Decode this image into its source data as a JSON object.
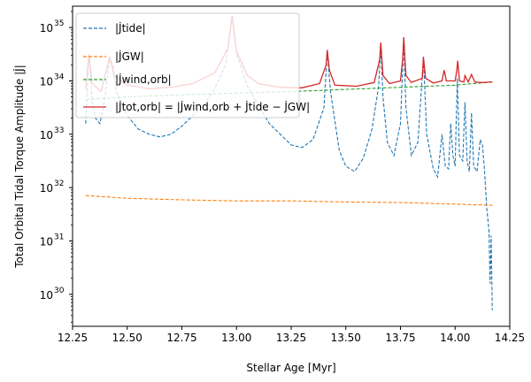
{
  "chart_data": {
    "type": "line",
    "xlabel": "Stellar Age [Myr]",
    "ylabel": "Total Orbital Tidal Torque Amplitude |J̇|",
    "xlim": [
      12.25,
      14.25
    ],
    "ylim_exp": [
      29.4,
      35.4
    ],
    "y_scale": "log",
    "x_ticks": [
      "12.25",
      "12.50",
      "12.75",
      "13.00",
      "13.25",
      "13.50",
      "13.75",
      "14.00",
      "14.25"
    ],
    "y_ticks": [
      {
        "base": "10",
        "exp": "30"
      },
      {
        "base": "10",
        "exp": "31"
      },
      {
        "base": "10",
        "exp": "32"
      },
      {
        "base": "10",
        "exp": "33"
      },
      {
        "base": "10",
        "exp": "34"
      },
      {
        "base": "10",
        "exp": "35"
      }
    ],
    "legend_position": "top-left",
    "series": [
      {
        "key": "tide",
        "color": "#1f77b4",
        "dash": true,
        "legend_tex": "|J̇tide|",
        "log10_values": [
          [
            12.31,
            33.2
          ],
          [
            12.325,
            34.5
          ],
          [
            12.34,
            33.6
          ],
          [
            12.355,
            33.3
          ],
          [
            12.375,
            33.2
          ],
          [
            12.395,
            33.6
          ],
          [
            12.42,
            34.4
          ],
          [
            12.435,
            34.3
          ],
          [
            12.45,
            33.8
          ],
          [
            12.5,
            33.35
          ],
          [
            12.55,
            33.1
          ],
          [
            12.6,
            33.0
          ],
          [
            12.65,
            32.95
          ],
          [
            12.7,
            33.0
          ],
          [
            12.75,
            33.15
          ],
          [
            12.8,
            33.35
          ],
          [
            12.85,
            33.55
          ],
          [
            12.9,
            33.85
          ],
          [
            12.95,
            34.3
          ],
          [
            12.98,
            35.2
          ],
          [
            13.0,
            34.5
          ],
          [
            13.05,
            33.9
          ],
          [
            13.1,
            33.55
          ],
          [
            13.15,
            33.2
          ],
          [
            13.2,
            33.0
          ],
          [
            13.25,
            32.8
          ],
          [
            13.3,
            32.75
          ],
          [
            13.35,
            32.9
          ],
          [
            13.4,
            33.5
          ],
          [
            13.415,
            34.55
          ],
          [
            13.43,
            33.8
          ],
          [
            13.47,
            32.7
          ],
          [
            13.5,
            32.4
          ],
          [
            13.54,
            32.3
          ],
          [
            13.58,
            32.55
          ],
          [
            13.62,
            33.1
          ],
          [
            13.65,
            33.9
          ],
          [
            13.66,
            34.65
          ],
          [
            13.67,
            33.7
          ],
          [
            13.69,
            32.85
          ],
          [
            13.72,
            32.6
          ],
          [
            13.75,
            33.2
          ],
          [
            13.765,
            34.75
          ],
          [
            13.775,
            33.5
          ],
          [
            13.8,
            32.6
          ],
          [
            13.83,
            32.85
          ],
          [
            13.855,
            34.45
          ],
          [
            13.87,
            33.0
          ],
          [
            13.9,
            32.35
          ],
          [
            13.92,
            32.2
          ],
          [
            13.94,
            33.0
          ],
          [
            13.955,
            32.4
          ],
          [
            13.97,
            32.35
          ],
          [
            13.98,
            33.2
          ],
          [
            13.99,
            32.6
          ],
          [
            14.0,
            32.4
          ],
          [
            14.01,
            34.05
          ],
          [
            14.02,
            32.6
          ],
          [
            14.035,
            32.5
          ],
          [
            14.045,
            33.6
          ],
          [
            14.055,
            32.5
          ],
          [
            14.065,
            32.3
          ],
          [
            14.075,
            33.4
          ],
          [
            14.085,
            32.4
          ],
          [
            14.1,
            32.3
          ],
          [
            14.115,
            32.9
          ],
          [
            14.125,
            32.8
          ],
          [
            14.135,
            32.3
          ],
          [
            14.145,
            31.6
          ],
          [
            14.155,
            31.2
          ],
          [
            14.16,
            30.2
          ],
          [
            14.165,
            31.1
          ],
          [
            14.17,
            29.7
          ]
        ]
      },
      {
        "key": "gw",
        "color": "#ff7f0e",
        "dash": true,
        "legend_tex": "|J̇GW|",
        "log10_values": [
          [
            12.31,
            31.85
          ],
          [
            12.5,
            31.8
          ],
          [
            12.75,
            31.77
          ],
          [
            13.0,
            31.75
          ],
          [
            13.25,
            31.75
          ],
          [
            13.5,
            31.73
          ],
          [
            13.75,
            31.72
          ],
          [
            14.0,
            31.69
          ],
          [
            14.17,
            31.67
          ]
        ]
      },
      {
        "key": "wind",
        "color": "#2ca02c",
        "dash": true,
        "legend_tex": "|J̇wind,orb|",
        "log10_values": [
          [
            12.31,
            33.65
          ],
          [
            12.5,
            33.7
          ],
          [
            12.75,
            33.74
          ],
          [
            13.0,
            33.77
          ],
          [
            13.25,
            33.8
          ],
          [
            13.5,
            33.84
          ],
          [
            13.75,
            33.88
          ],
          [
            14.0,
            33.92
          ],
          [
            14.17,
            33.98
          ]
        ]
      },
      {
        "key": "tot",
        "color": "#d62728",
        "dash": false,
        "legend_tex": "|J̇tot,orb| = |J̇wind,orb + J̇tide − J̇GW|",
        "log10_values": [
          [
            12.31,
            33.85
          ],
          [
            12.325,
            34.5
          ],
          [
            12.34,
            33.95
          ],
          [
            12.38,
            33.8
          ],
          [
            12.42,
            34.45
          ],
          [
            12.44,
            34.1
          ],
          [
            12.5,
            33.92
          ],
          [
            12.6,
            33.85
          ],
          [
            12.7,
            33.88
          ],
          [
            12.8,
            33.95
          ],
          [
            12.9,
            34.15
          ],
          [
            12.96,
            34.6
          ],
          [
            12.98,
            35.22
          ],
          [
            13.0,
            34.55
          ],
          [
            13.05,
            34.1
          ],
          [
            13.1,
            33.95
          ],
          [
            13.2,
            33.88
          ],
          [
            13.3,
            33.87
          ],
          [
            13.38,
            33.95
          ],
          [
            13.41,
            34.3
          ],
          [
            13.415,
            34.58
          ],
          [
            13.425,
            34.2
          ],
          [
            13.45,
            33.92
          ],
          [
            13.55,
            33.9
          ],
          [
            13.63,
            33.97
          ],
          [
            13.655,
            34.4
          ],
          [
            13.66,
            34.72
          ],
          [
            13.67,
            34.1
          ],
          [
            13.7,
            33.95
          ],
          [
            13.75,
            34.0
          ],
          [
            13.76,
            34.4
          ],
          [
            13.765,
            34.82
          ],
          [
            13.775,
            34.1
          ],
          [
            13.8,
            33.97
          ],
          [
            13.85,
            34.05
          ],
          [
            13.855,
            34.45
          ],
          [
            13.865,
            34.05
          ],
          [
            13.9,
            33.96
          ],
          [
            13.94,
            34.0
          ],
          [
            13.95,
            34.2
          ],
          [
            13.96,
            34.0
          ],
          [
            14.0,
            34.0
          ],
          [
            14.008,
            34.2
          ],
          [
            14.012,
            34.38
          ],
          [
            14.02,
            34.0
          ],
          [
            14.04,
            33.98
          ],
          [
            14.045,
            34.1
          ],
          [
            14.06,
            33.98
          ],
          [
            14.075,
            34.12
          ],
          [
            14.09,
            33.98
          ],
          [
            14.11,
            33.97
          ],
          [
            14.125,
            33.97
          ],
          [
            14.17,
            33.98
          ]
        ]
      }
    ]
  }
}
